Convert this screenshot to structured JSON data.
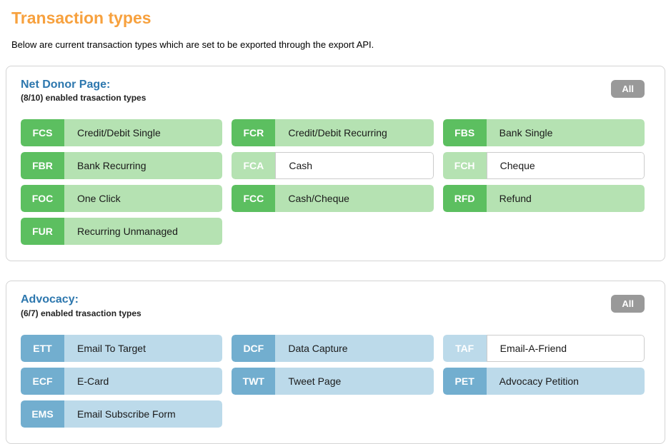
{
  "page": {
    "title": "Transaction types",
    "subtitle": "Below are current transaction types which are set to be exported through the export API."
  },
  "colors": {
    "accent_orange": "#f7a13e",
    "heading_blue": "#2d77ae",
    "green_badge": "#5cbf60",
    "green_light": "#b5e2b2",
    "blue_badge": "#72aecf",
    "blue_light": "#bcdaea",
    "all_button_gray": "#999999"
  },
  "sections": [
    {
      "id": "net-donor-page",
      "title": "Net Donor Page:",
      "enabled_summary": "(8/10) enabled trasaction types",
      "all_button_label": "All",
      "theme": "green",
      "tags": [
        {
          "code": "FCS",
          "label": "Credit/Debit Single",
          "enabled": true
        },
        {
          "code": "FCR",
          "label": "Credit/Debit Recurring",
          "enabled": true
        },
        {
          "code": "FBS",
          "label": "Bank Single",
          "enabled": true
        },
        {
          "code": "FBR",
          "label": "Bank Recurring",
          "enabled": true
        },
        {
          "code": "FCA",
          "label": "Cash",
          "enabled": false
        },
        {
          "code": "FCH",
          "label": "Cheque",
          "enabled": false
        },
        {
          "code": "FOC",
          "label": "One Click",
          "enabled": true
        },
        {
          "code": "FCC",
          "label": "Cash/Cheque",
          "enabled": true
        },
        {
          "code": "RFD",
          "label": "Refund",
          "enabled": true
        },
        {
          "code": "FUR",
          "label": "Recurring Unmanaged",
          "enabled": true
        }
      ]
    },
    {
      "id": "advocacy",
      "title": "Advocacy:",
      "enabled_summary": "(6/7) enabled trasaction types",
      "all_button_label": "All",
      "theme": "blue",
      "tags": [
        {
          "code": "ETT",
          "label": "Email To Target",
          "enabled": true
        },
        {
          "code": "DCF",
          "label": "Data Capture",
          "enabled": true
        },
        {
          "code": "TAF",
          "label": "Email-A-Friend",
          "enabled": false
        },
        {
          "code": "ECF",
          "label": "E-Card",
          "enabled": true
        },
        {
          "code": "TWT",
          "label": "Tweet Page",
          "enabled": true
        },
        {
          "code": "PET",
          "label": "Advocacy Petition",
          "enabled": true
        },
        {
          "code": "EMS",
          "label": "Email Subscribe Form",
          "enabled": true
        }
      ]
    }
  ]
}
